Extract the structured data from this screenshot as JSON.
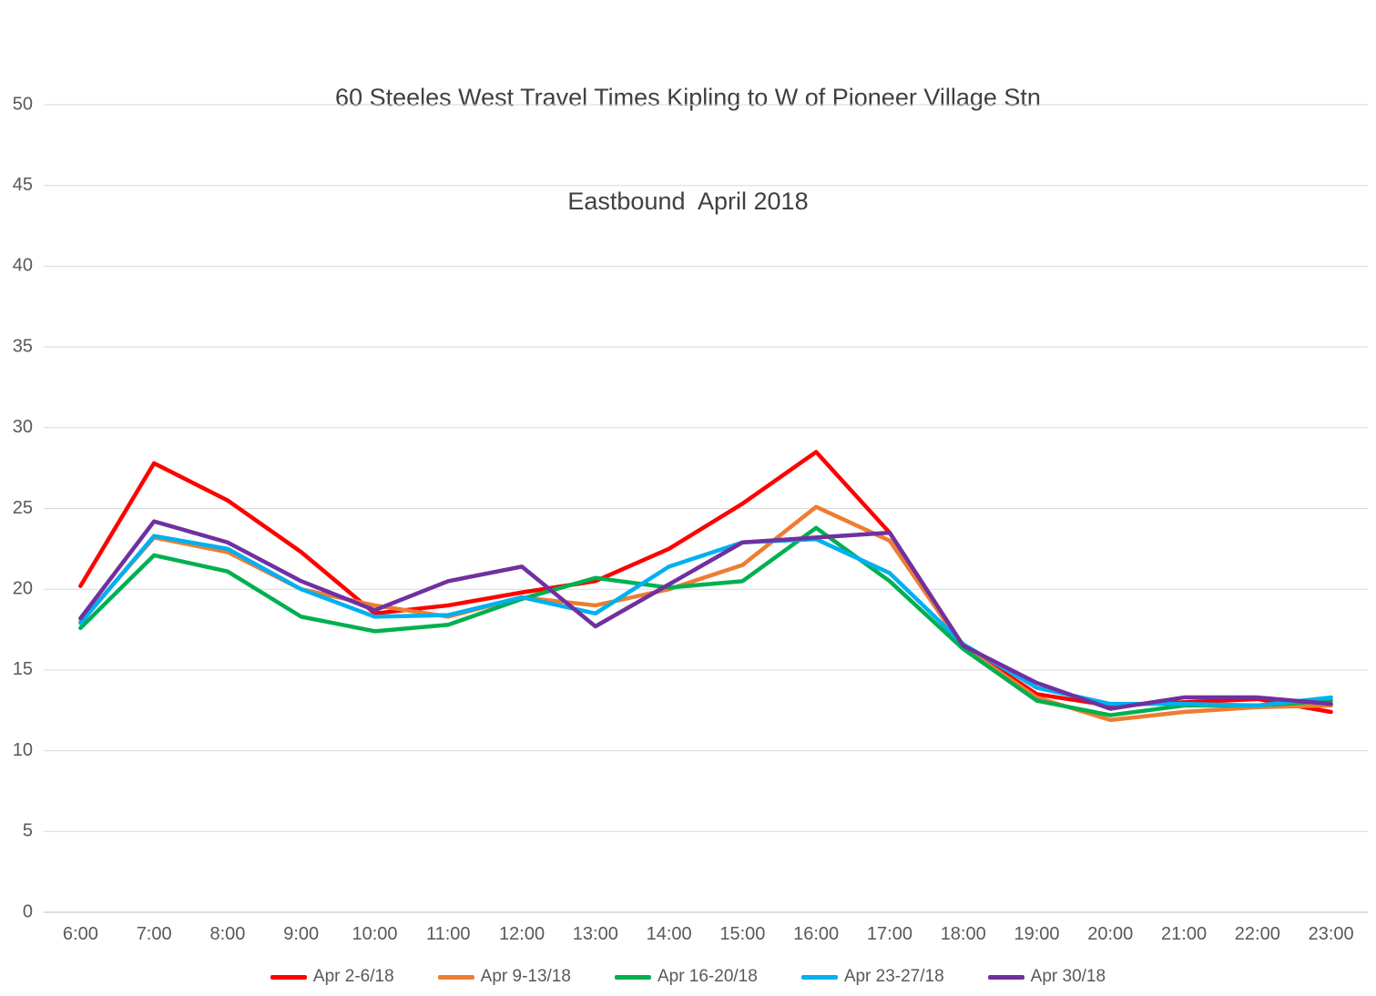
{
  "chart_data": {
    "type": "line",
    "title_line1": "60 Steeles West Travel Times Kipling to W of Pioneer Village Stn",
    "title_line2": "Eastbound  April 2018",
    "xlabel": "",
    "ylabel": "",
    "ylim": [
      0,
      50
    ],
    "yticks": [
      0,
      5,
      10,
      15,
      20,
      25,
      30,
      35,
      40,
      45,
      50
    ],
    "grid": true,
    "legend_position": "bottom",
    "categories": [
      "6:00",
      "7:00",
      "8:00",
      "9:00",
      "10:00",
      "11:00",
      "12:00",
      "13:00",
      "14:00",
      "15:00",
      "16:00",
      "17:00",
      "18:00",
      "19:00",
      "20:00",
      "21:00",
      "22:00",
      "23:00"
    ],
    "series": [
      {
        "name": "Apr 2-6/18",
        "color": "#FF0000",
        "values": [
          20.2,
          27.8,
          25.5,
          22.3,
          18.5,
          19.0,
          19.8,
          20.5,
          22.5,
          25.3,
          28.5,
          23.5,
          16.5,
          13.5,
          12.8,
          13.0,
          13.2,
          12.4
        ]
      },
      {
        "name": "Apr 9-13/18",
        "color": "#ED7D31",
        "values": [
          18.0,
          23.2,
          22.3,
          20.0,
          19.0,
          18.3,
          19.5,
          19.0,
          20.0,
          21.5,
          25.1,
          23.0,
          16.4,
          13.3,
          11.9,
          12.4,
          12.7,
          12.8
        ]
      },
      {
        "name": "Apr 16-20/18",
        "color": "#00B050",
        "values": [
          17.6,
          22.1,
          21.1,
          18.3,
          17.4,
          17.8,
          19.4,
          20.7,
          20.1,
          20.5,
          23.8,
          20.5,
          16.3,
          13.1,
          12.2,
          12.8,
          12.8,
          13.1
        ]
      },
      {
        "name": "Apr 23-27/18",
        "color": "#00B0F0",
        "values": [
          17.9,
          23.3,
          22.5,
          20.0,
          18.3,
          18.4,
          19.5,
          18.5,
          21.4,
          22.9,
          23.1,
          21.0,
          16.6,
          13.9,
          12.9,
          12.9,
          12.8,
          13.3
        ]
      },
      {
        "name": "Apr 30/18",
        "color": "#7030A0",
        "values": [
          18.2,
          24.2,
          22.9,
          20.5,
          18.7,
          20.5,
          21.4,
          17.7,
          20.3,
          22.9,
          23.2,
          23.5,
          16.5,
          14.2,
          12.6,
          13.3,
          13.3,
          12.9
        ]
      }
    ],
    "colors": {
      "gridline": "#D9D9D9",
      "axis_line": "#BFBFBF",
      "tick_text": "#595959",
      "title_text": "#404040",
      "background": "#FFFFFF"
    }
  }
}
